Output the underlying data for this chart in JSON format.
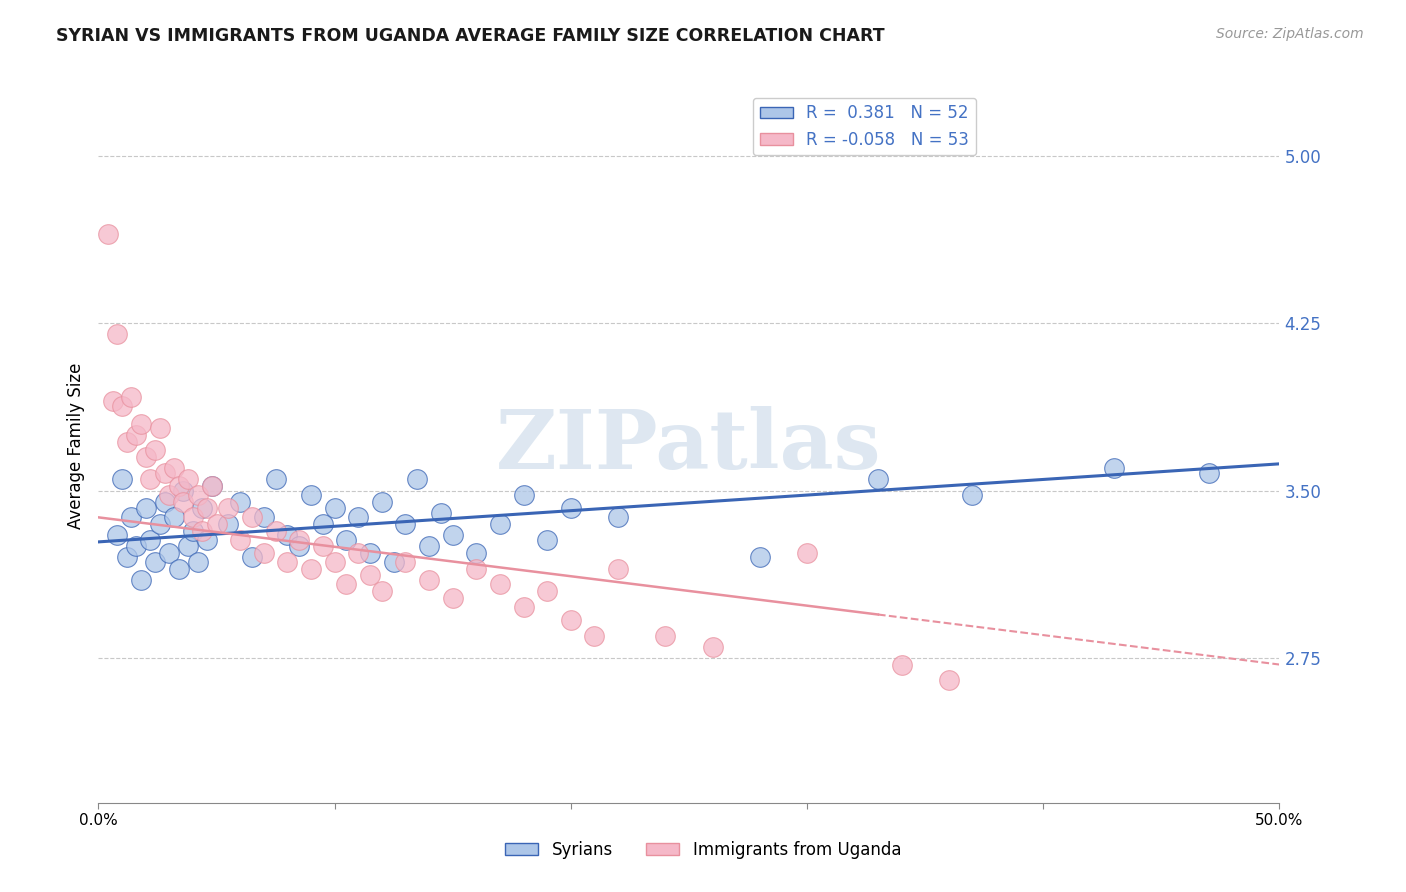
{
  "title": "SYRIAN VS IMMIGRANTS FROM UGANDA AVERAGE FAMILY SIZE CORRELATION CHART",
  "source": "Source: ZipAtlas.com",
  "ylabel": "Average Family Size",
  "xlim": [
    0.0,
    0.5
  ],
  "ylim": [
    2.1,
    5.3
  ],
  "yticks": [
    2.75,
    3.5,
    4.25,
    5.0
  ],
  "xticks": [
    0.0,
    0.1,
    0.2,
    0.3,
    0.4,
    0.5
  ],
  "xticklabels": [
    "0.0%",
    "",
    "",
    "",
    "",
    "50.0%"
  ],
  "background_color": "#ffffff",
  "grid_color": "#c8c8c8",
  "scatter_blue_color": "#adc6e8",
  "scatter_pink_color": "#f5b8c8",
  "line_blue_color": "#3a65b5",
  "line_pink_color": "#e8909e",
  "legend_label1": "Syrians",
  "legend_label2": "Immigrants from Uganda",
  "watermark": "ZIPatlas",
  "R_blue": 0.381,
  "N_blue": 52,
  "R_pink": -0.058,
  "N_pink": 53,
  "blue_line_x0": 0.0,
  "blue_line_y0": 3.27,
  "blue_line_x1": 0.5,
  "blue_line_y1": 3.62,
  "pink_line_x0": 0.0,
  "pink_line_y0": 3.38,
  "pink_line_x1": 0.5,
  "pink_line_y1": 2.72,
  "blue_points": [
    [
      0.008,
      3.3
    ],
    [
      0.01,
      3.55
    ],
    [
      0.012,
      3.2
    ],
    [
      0.014,
      3.38
    ],
    [
      0.016,
      3.25
    ],
    [
      0.018,
      3.1
    ],
    [
      0.02,
      3.42
    ],
    [
      0.022,
      3.28
    ],
    [
      0.024,
      3.18
    ],
    [
      0.026,
      3.35
    ],
    [
      0.028,
      3.45
    ],
    [
      0.03,
      3.22
    ],
    [
      0.032,
      3.38
    ],
    [
      0.034,
      3.15
    ],
    [
      0.036,
      3.5
    ],
    [
      0.038,
      3.25
    ],
    [
      0.04,
      3.32
    ],
    [
      0.042,
      3.18
    ],
    [
      0.044,
      3.42
    ],
    [
      0.046,
      3.28
    ],
    [
      0.048,
      3.52
    ],
    [
      0.055,
      3.35
    ],
    [
      0.06,
      3.45
    ],
    [
      0.065,
      3.2
    ],
    [
      0.07,
      3.38
    ],
    [
      0.075,
      3.55
    ],
    [
      0.08,
      3.3
    ],
    [
      0.085,
      3.25
    ],
    [
      0.09,
      3.48
    ],
    [
      0.095,
      3.35
    ],
    [
      0.1,
      3.42
    ],
    [
      0.105,
      3.28
    ],
    [
      0.11,
      3.38
    ],
    [
      0.115,
      3.22
    ],
    [
      0.12,
      3.45
    ],
    [
      0.125,
      3.18
    ],
    [
      0.13,
      3.35
    ],
    [
      0.135,
      3.55
    ],
    [
      0.14,
      3.25
    ],
    [
      0.145,
      3.4
    ],
    [
      0.15,
      3.3
    ],
    [
      0.16,
      3.22
    ],
    [
      0.17,
      3.35
    ],
    [
      0.18,
      3.48
    ],
    [
      0.19,
      3.28
    ],
    [
      0.2,
      3.42
    ],
    [
      0.22,
      3.38
    ],
    [
      0.28,
      3.2
    ],
    [
      0.33,
      3.55
    ],
    [
      0.37,
      3.48
    ],
    [
      0.43,
      3.6
    ],
    [
      0.47,
      3.58
    ]
  ],
  "pink_points": [
    [
      0.004,
      4.65
    ],
    [
      0.006,
      3.9
    ],
    [
      0.008,
      4.2
    ],
    [
      0.01,
      3.88
    ],
    [
      0.012,
      3.72
    ],
    [
      0.014,
      3.92
    ],
    [
      0.016,
      3.75
    ],
    [
      0.018,
      3.8
    ],
    [
      0.02,
      3.65
    ],
    [
      0.022,
      3.55
    ],
    [
      0.024,
      3.68
    ],
    [
      0.026,
      3.78
    ],
    [
      0.028,
      3.58
    ],
    [
      0.03,
      3.48
    ],
    [
      0.032,
      3.6
    ],
    [
      0.034,
      3.52
    ],
    [
      0.036,
      3.45
    ],
    [
      0.038,
      3.55
    ],
    [
      0.04,
      3.38
    ],
    [
      0.042,
      3.48
    ],
    [
      0.044,
      3.32
    ],
    [
      0.046,
      3.42
    ],
    [
      0.048,
      3.52
    ],
    [
      0.05,
      3.35
    ],
    [
      0.055,
      3.42
    ],
    [
      0.06,
      3.28
    ],
    [
      0.065,
      3.38
    ],
    [
      0.07,
      3.22
    ],
    [
      0.075,
      3.32
    ],
    [
      0.08,
      3.18
    ],
    [
      0.085,
      3.28
    ],
    [
      0.09,
      3.15
    ],
    [
      0.095,
      3.25
    ],
    [
      0.1,
      3.18
    ],
    [
      0.105,
      3.08
    ],
    [
      0.11,
      3.22
    ],
    [
      0.115,
      3.12
    ],
    [
      0.12,
      3.05
    ],
    [
      0.13,
      3.18
    ],
    [
      0.14,
      3.1
    ],
    [
      0.15,
      3.02
    ],
    [
      0.16,
      3.15
    ],
    [
      0.17,
      3.08
    ],
    [
      0.18,
      2.98
    ],
    [
      0.19,
      3.05
    ],
    [
      0.2,
      2.92
    ],
    [
      0.21,
      2.85
    ],
    [
      0.22,
      3.15
    ],
    [
      0.24,
      2.85
    ],
    [
      0.26,
      2.8
    ],
    [
      0.3,
      3.22
    ],
    [
      0.34,
      2.72
    ],
    [
      0.36,
      2.65
    ]
  ]
}
